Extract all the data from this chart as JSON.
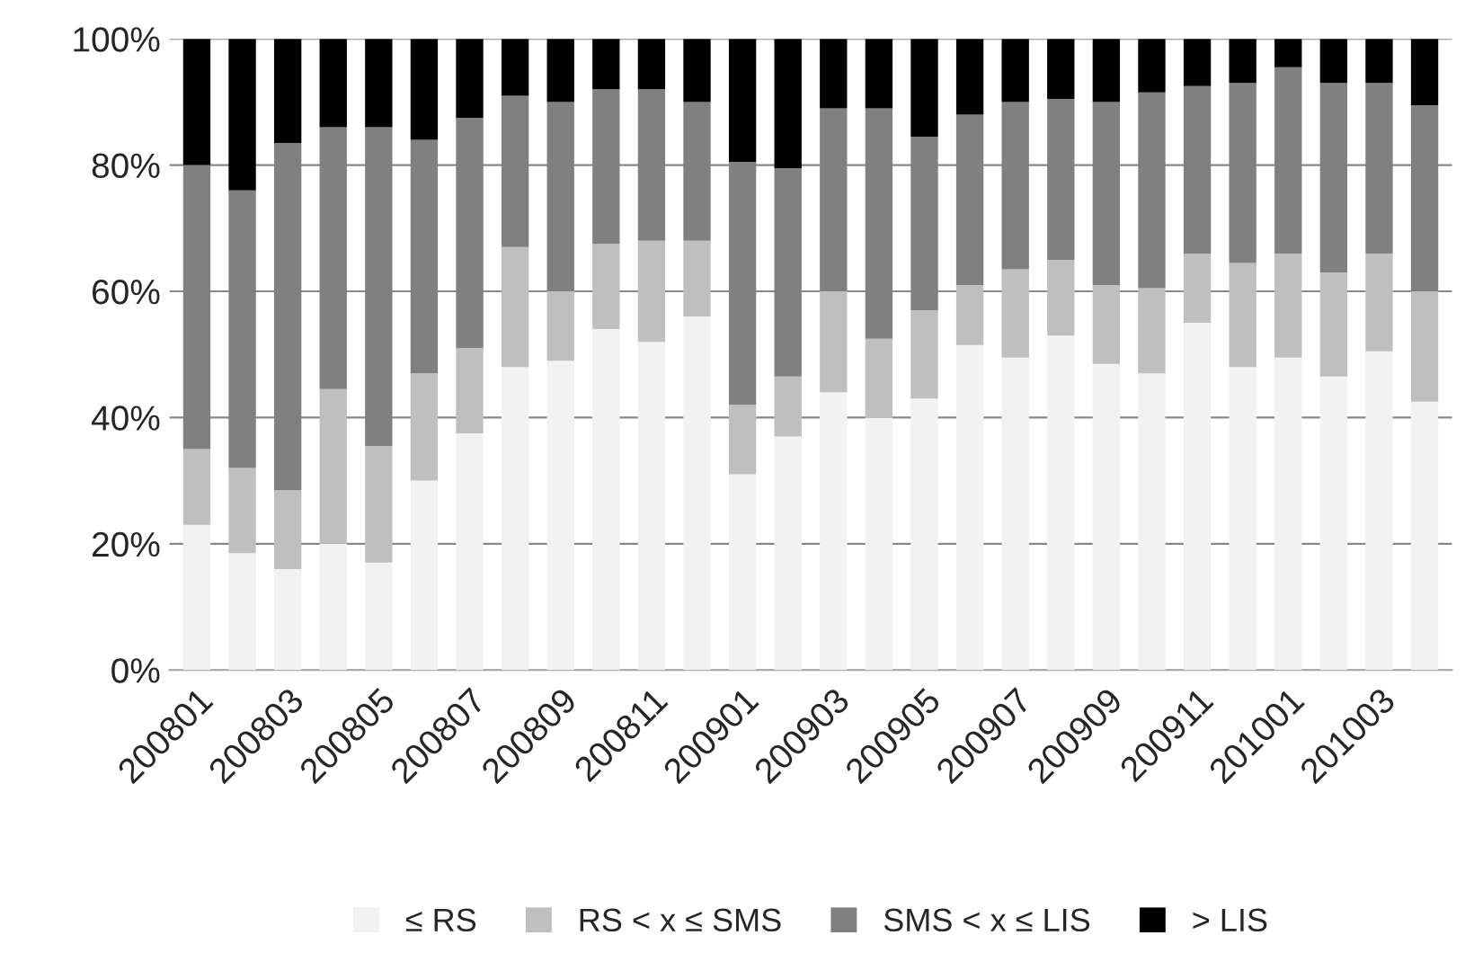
{
  "chart_data": {
    "type": "bar",
    "stacked": true,
    "categories": [
      "200801",
      null,
      "200803",
      null,
      "200805",
      null,
      "200807",
      null,
      "200809",
      null,
      "200811",
      null,
      "200901",
      null,
      "200903",
      null,
      "200905",
      null,
      "200907",
      null,
      "200909",
      null,
      "200911",
      null,
      "201001",
      null,
      "201003",
      null
    ],
    "series": [
      {
        "name": "≤ RS",
        "color": "#f2f2f2",
        "values": [
          23,
          18.5,
          16,
          20,
          17,
          30,
          37.5,
          48,
          49,
          54,
          52,
          56,
          31,
          37,
          44,
          40,
          43,
          51.5,
          49.5,
          53,
          48.5,
          47,
          55,
          48,
          49.5,
          46.5,
          50.5,
          42.5
        ]
      },
      {
        "name": "RS < x ≤ SMS",
        "color": "#bfbfbf",
        "values": [
          12,
          13.5,
          12.5,
          24.5,
          18.5,
          17,
          13.5,
          19,
          11,
          13.5,
          16,
          12,
          11,
          9.5,
          16,
          12.5,
          14,
          9.5,
          14,
          12,
          12.5,
          13.5,
          11,
          16.5,
          16.5,
          16.5,
          15.5,
          17.5
        ]
      },
      {
        "name": "SMS < x ≤ LIS",
        "color": "#808080",
        "values": [
          45,
          44,
          55,
          41.5,
          50.5,
          37,
          36.5,
          24,
          30,
          24.5,
          24,
          22,
          38.5,
          33,
          29,
          36.5,
          27.5,
          27,
          26.5,
          25.5,
          29,
          31,
          26.5,
          28.5,
          29.5,
          30,
          27,
          29.5
        ]
      },
      {
        "name": "> LIS",
        "color": "#000000",
        "values": [
          20,
          24,
          16.5,
          14,
          14,
          16,
          12.5,
          9,
          10,
          8,
          8,
          10,
          19.5,
          20.5,
          11,
          11,
          15.5,
          12,
          10,
          9.5,
          10,
          8.5,
          7.5,
          7,
          4.5,
          7,
          7,
          10.5
        ]
      }
    ],
    "ylim": [
      0,
      100
    ],
    "yticks": [
      {
        "value": 0,
        "label": "0%"
      },
      {
        "value": 20,
        "label": "20%"
      },
      {
        "value": 40,
        "label": "40%"
      },
      {
        "value": 60,
        "label": "60%"
      },
      {
        "value": 80,
        "label": "80%"
      },
      {
        "value": 100,
        "label": "100%"
      }
    ],
    "grid": "y",
    "legend": "bottom"
  }
}
